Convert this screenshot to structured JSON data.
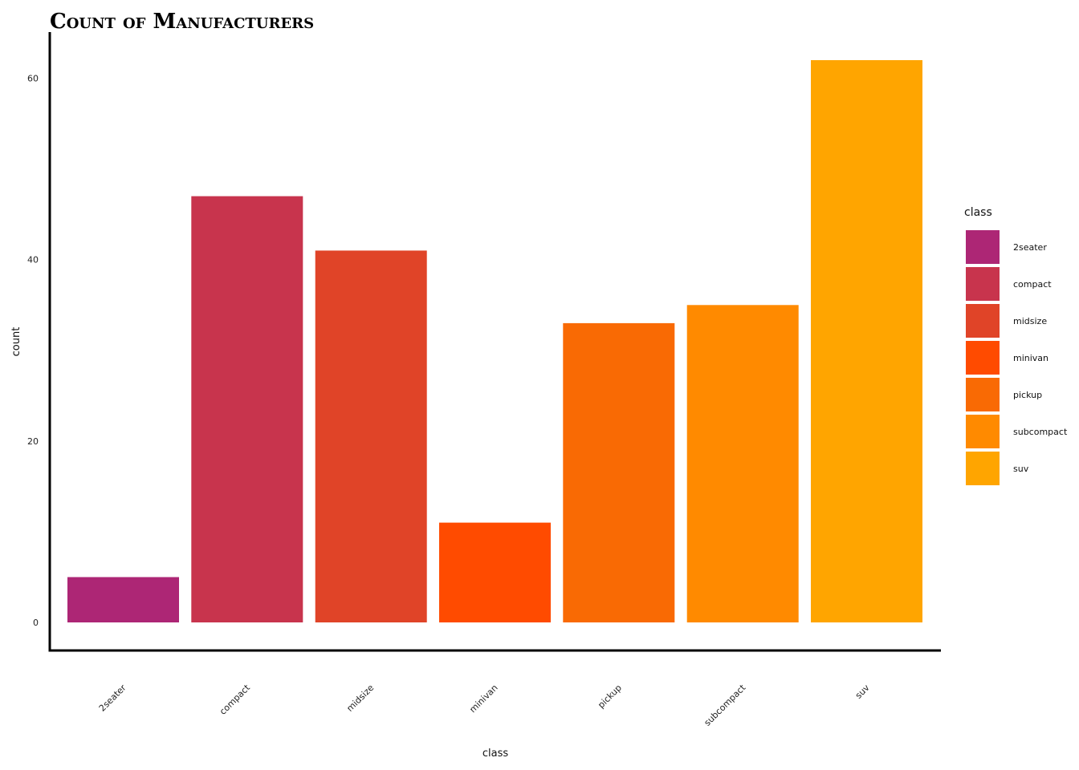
{
  "chart_data": {
    "type": "bar",
    "title": "Count of Manufacturers",
    "xlabel": "class",
    "ylabel": "count",
    "categories": [
      "2seater",
      "compact",
      "midsize",
      "minivan",
      "pickup",
      "subcompact",
      "suv"
    ],
    "values": [
      5,
      47,
      41,
      11,
      33,
      35,
      62
    ],
    "colors": [
      "#AD2675",
      "#C8344D",
      "#E04428",
      "#FF4B00",
      "#F96A04",
      "#FF8A00",
      "#FFA500"
    ],
    "yticks": [
      0,
      20,
      40,
      60
    ],
    "ylim": [
      0,
      62
    ],
    "grid": false,
    "legend": {
      "title": "class",
      "position": "right"
    }
  }
}
